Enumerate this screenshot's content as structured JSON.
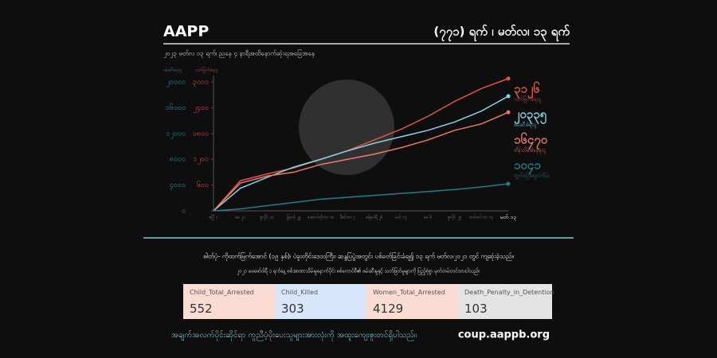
{
  "header": {
    "title": "AAPP",
    "right_title": "(၇၇၁) ရက် ၊ မတ်လ၊ ၁၃ ရက်",
    "subtitle": "၂၀၂၃ မတ်လ ၁၃ ရက်၊ ညနေ ၄ နာရီအထိနောက်ဆုံးရအခြေအနေ"
  },
  "chart_data": {
    "type": "line",
    "y_label": "ဖမ်းဆီးခံရသူ",
    "y2_label": "သတ်ဖြတ်ခံရသူ",
    "categories": [
      "ဧပြီ ၁",
      "မေ ၂၁",
      "ဇူလိုင် ၁၀",
      "ခြင်္သေ့ ၂၉",
      "အောက်တိုဘာ ၁၈",
      "ဒီဇင်ဘာ ၇",
      "ဇန်နဝါရီ ၂၆",
      "မတ် ၁၇",
      "မေ ၆",
      "ဇူလိုင် ၂၅",
      "စက်တင်ဘာ ၁၃",
      "မတ် ၁၃"
    ],
    "series": [
      {
        "name": "သတ်ဖြတ်ခံရသူ",
        "color": "#e0554a",
        "axis": "y2",
        "values": [
          0,
          700,
          860,
          1000,
          1200,
          1400,
          1650,
          1900,
          2200,
          2550,
          2850,
          3080
        ]
      },
      {
        "name": "ဖမ်းဆီးခံရသူ",
        "color": "#86d3e3",
        "values": [
          0,
          3500,
          5200,
          6800,
          8000,
          9300,
          10500,
          11500,
          12500,
          13800,
          15500,
          17800
        ]
      },
      {
        "name": "ထိန်းသိမ်းခံနေရသူ",
        "color": "#e87a6c",
        "values": [
          0,
          4300,
          5400,
          6000,
          7200,
          8000,
          8800,
          9800,
          11000,
          12500,
          13500,
          15300
        ]
      },
      {
        "name": "ထွက်ပြေးရှောင်တိမ်း",
        "color": "#1f7f8c",
        "values": [
          0,
          300,
          800,
          1300,
          1800,
          2100,
          2400,
          2700,
          3000,
          3300,
          3700,
          4200
        ]
      }
    ],
    "annotations": [
      "၃၁၂၆",
      "၂၀၃၃၅",
      "၁၆၄၇၀",
      "၁၀၄၁"
    ],
    "ylim": [
      0,
      21000
    ],
    "yticks": [
      {
        "value": 0,
        "label": "၀"
      },
      {
        "value": 4000,
        "label": "၄၀၀၀"
      },
      {
        "value": 8000,
        "label": "၈၀၀၀"
      },
      {
        "value": 12000,
        "label": "၁၂၀၀၀"
      },
      {
        "value": 16000,
        "label": "၁၆၀၀၀"
      },
      {
        "value": 20000,
        "label": "၂၀၀၀၀"
      }
    ],
    "y2lim": [
      0,
      3150
    ],
    "y2ticks": [
      {
        "value": 600,
        "label": "၆၀၀"
      },
      {
        "value": 1200,
        "label": "၁၂၀၀"
      },
      {
        "value": 1800,
        "label": "၁၈၀၀"
      },
      {
        "value": 2400,
        "label": "၂၄၀၀"
      },
      {
        "value": 3000,
        "label": "၃၀၀၀"
      }
    ]
  },
  "notes": [
    "ဓါတ်ပုံ- ကိုထက်မြက်အောင် (၁၉ နှစ်)၊ ပဲခူးတိုင်းဒေသကြီး၊ ဆန္ဒပြပွဲအတွင်း ပစ်ခတ်ခြင်းခံရ၍ ၁၃ ရက် မတ်လ၊၂၀၂၁ တွင် ကျဆုံးခဲ့သည်။",
    "၂၀၂၁ ဖေဖော်ဝါရီ ၁ ရက်နေ့ စစ်အာဏာသိမ်းမှုနောက်ပိုင်း စစ်ကောင်စီ၏ ဖမ်းဆီးမှုနှင့် သတ်ဖြတ်မှုများကို ပြည့်စုံစွာ မှတ်တမ်းတင်ထားပါသည်။"
  ],
  "cards": [
    {
      "label": "Child_Total_Arrested",
      "value": 552
    },
    {
      "label": "Child_Killed",
      "value": 303
    },
    {
      "label": "Women_Total_Arrested",
      "value": 4129
    },
    {
      "label": "Death_Penalty_in_Detention",
      "value": 103
    }
  ],
  "footer": {
    "quote": "အချက်အလက်ပိုင်းဆိုင်ရာ ကူညီပံ့ပိုးပေးသူများအားလုံးကို အထူးကျေးဇူးတင်ရှိပါသည်။",
    "url": "coup.aappb.org"
  }
}
